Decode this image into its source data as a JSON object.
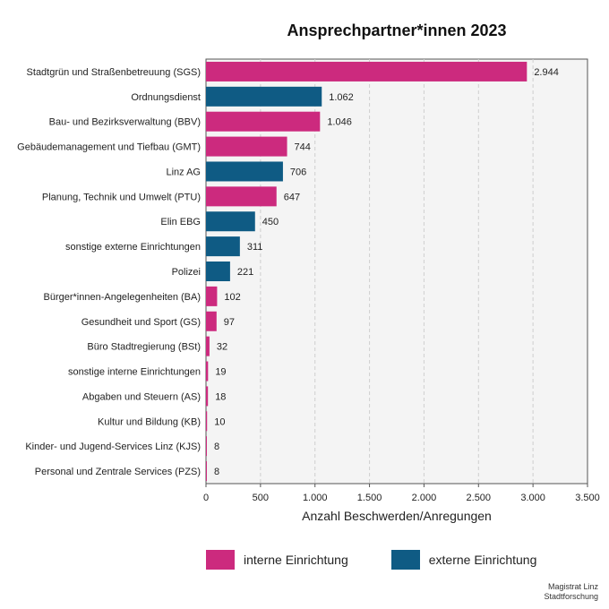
{
  "chart_data": {
    "type": "bar",
    "orientation": "horizontal",
    "title": "Ansprechpartner*innen 2023",
    "xlabel": "Anzahl Beschwerden/Anregungen",
    "ylabel": "",
    "xlim": [
      0,
      3500
    ],
    "xticks": [
      0,
      500,
      1000,
      1500,
      2000,
      2500,
      3000,
      3500
    ],
    "xtick_labels": [
      "0",
      "500",
      "1.000",
      "1.500",
      "2.000",
      "2.500",
      "3.000",
      "3.500"
    ],
    "grid": "vertical-dashed",
    "legend_position": "bottom",
    "series_colors": {
      "intern": "#cc2a7e",
      "extern": "#0f5b84"
    },
    "categories": [
      "Stadtgrün und Straßenbetreuung (SGS)",
      "Ordnungsdienst",
      "Bau- und Bezirksverwaltung (BBV)",
      "Gebäudemanagement und Tiefbau (GMT)",
      "Linz AG",
      "Planung, Technik und Umwelt (PTU)",
      "Elin EBG",
      "sonstige externe Einrichtungen",
      "Polizei",
      "Bürger*innen-Angelegenheiten (BA)",
      "Gesundheit und Sport (GS)",
      "Büro Stadtregierung (BSt)",
      "sonstige interne Einrichtungen",
      "Abgaben und Steuern (AS)",
      "Kultur und Bildung (KB)",
      "Kinder- und Jugend-Services Linz (KJS)",
      "Personal und Zentrale Services (PZS)"
    ],
    "values": [
      2944,
      1062,
      1046,
      744,
      706,
      647,
      450,
      311,
      221,
      102,
      97,
      32,
      19,
      18,
      10,
      8,
      8
    ],
    "value_labels": [
      "2.944",
      "1.062",
      "1.046",
      "744",
      "706",
      "647",
      "450",
      "311",
      "221",
      "102",
      "97",
      "32",
      "19",
      "18",
      "10",
      "8",
      "8"
    ],
    "groups": [
      "intern",
      "extern",
      "intern",
      "intern",
      "extern",
      "intern",
      "extern",
      "extern",
      "extern",
      "intern",
      "intern",
      "intern",
      "intern",
      "intern",
      "intern",
      "intern",
      "intern"
    ]
  },
  "legend": {
    "intern_label": "interne Einrichtung",
    "extern_label": "externe Einrichtung"
  },
  "source": {
    "line1": "Magistrat Linz",
    "line2": "Stadtforschung"
  }
}
